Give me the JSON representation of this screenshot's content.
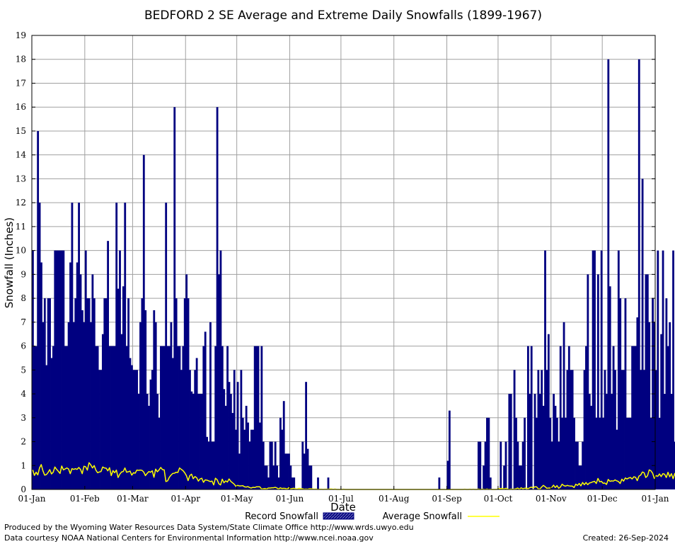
{
  "chart_data": {
    "type": "bar",
    "title": "BEDFORD 2 SE Average and Extreme Daily Snowfalls (1899-1967)",
    "xlabel": "Date",
    "ylabel": "Snowfall (Inches)",
    "ylim": [
      0,
      19
    ],
    "yticks": [
      "0",
      "1",
      "2",
      "3",
      "4",
      "5",
      "6",
      "7",
      "8",
      "9",
      "10",
      "11",
      "12",
      "13",
      "14",
      "15",
      "16",
      "17",
      "18",
      "19"
    ],
    "xticks": [
      "01-Jan",
      "01-Feb",
      "01-Mar",
      "01-Apr",
      "01-May",
      "01-Jun",
      "01-Jul",
      "01-Aug",
      "01-Sep",
      "01-Oct",
      "01-Nov",
      "01-Dec",
      "01-Jan"
    ],
    "xtick_days": [
      0,
      31,
      59,
      90,
      120,
      151,
      181,
      212,
      243,
      273,
      304,
      334,
      365
    ],
    "grid": true,
    "legend_position": "bottom",
    "series": [
      {
        "name": "Record Snowfall",
        "color": "#000080",
        "kind": "bar",
        "values": [
          10,
          6,
          6,
          15,
          12,
          9.5,
          7,
          8,
          5.2,
          8,
          8,
          5.5,
          6,
          10,
          10,
          10,
          10,
          10,
          10,
          6,
          6,
          7,
          9.5,
          12,
          7,
          8,
          9.5,
          12,
          9,
          7.5,
          7,
          10,
          8,
          8,
          7,
          9,
          8,
          6,
          6,
          5,
          5,
          6.5,
          8,
          8,
          10.4,
          6,
          6,
          6,
          6,
          12,
          8.4,
          10,
          6.5,
          8.5,
          12,
          6,
          8,
          5.5,
          5.2,
          5,
          5,
          5,
          4,
          7,
          8,
          14,
          7.5,
          4,
          3.5,
          4.6,
          5,
          7.5,
          7,
          4,
          3,
          6,
          6,
          6,
          12,
          6,
          6,
          7,
          5.5,
          16,
          8,
          6,
          6,
          5,
          6,
          8,
          9,
          8,
          5,
          4.1,
          4,
          5,
          5.5,
          4,
          4,
          4,
          6,
          6.6,
          2.2,
          2,
          7,
          2,
          2,
          6,
          16,
          9,
          10,
          6,
          4.2,
          3.5,
          6,
          4.5,
          4,
          3.2,
          5,
          2.5,
          4.5,
          1.5,
          5,
          3,
          2.5,
          3.5,
          2.8,
          2,
          2.5,
          2.5,
          6,
          6,
          6,
          2.8,
          6,
          2,
          1,
          1,
          0.5,
          2,
          2,
          1,
          2,
          1,
          0.5,
          3,
          2.5,
          3.7,
          1.5,
          1.5,
          1.5,
          1,
          0.5,
          0.5,
          0,
          0,
          0,
          0,
          2,
          1.5,
          4.5,
          1.7,
          1,
          1,
          0,
          0,
          0,
          0.5,
          0,
          0,
          0,
          0,
          0,
          0.5,
          0,
          0,
          0,
          0,
          0,
          0,
          0,
          0,
          0,
          0,
          0,
          0,
          0,
          0,
          0,
          0,
          0,
          0,
          0,
          0,
          0,
          0,
          0,
          0,
          0,
          0,
          0,
          0,
          0,
          0,
          0,
          0,
          0,
          0,
          0,
          0,
          0,
          0,
          0,
          0,
          0,
          0,
          0,
          0,
          0,
          0,
          0,
          0,
          0,
          0,
          0,
          0,
          0,
          0,
          0,
          0,
          0,
          0,
          0,
          0,
          0,
          0,
          0,
          0,
          0.5,
          0,
          0,
          0,
          0,
          1.2,
          3.3,
          0,
          0,
          0,
          0,
          0,
          0,
          0,
          0,
          0,
          0,
          0,
          0,
          0,
          0,
          0,
          0,
          2,
          2,
          0,
          1,
          2,
          3,
          3,
          0.5,
          0,
          0,
          0,
          0,
          0,
          2,
          0,
          1,
          2,
          0,
          4,
          4,
          0,
          5,
          3,
          2,
          1,
          1,
          2,
          3,
          0,
          6,
          4,
          6,
          0,
          4,
          3,
          5,
          4,
          5,
          3.5,
          10,
          5,
          6.5,
          3,
          2,
          4,
          3.5,
          3,
          2,
          6,
          3,
          7,
          3,
          5,
          6,
          5,
          5,
          3,
          2,
          2,
          1,
          1,
          2,
          5,
          6,
          9,
          4,
          3.5,
          10,
          10,
          3,
          9,
          3,
          10,
          3,
          5,
          4,
          18,
          8.5,
          4,
          6,
          5,
          2.5,
          10,
          8,
          5,
          5,
          8,
          3,
          3,
          3,
          6,
          6,
          6,
          7.2,
          18,
          5,
          13,
          5,
          9,
          9,
          7,
          3,
          8,
          7,
          5,
          10,
          3,
          6.5,
          10,
          4,
          8,
          6,
          7,
          4,
          10,
          2,
          4,
          5,
          12,
          7,
          3,
          3,
          10,
          14,
          8,
          10,
          12,
          7,
          4,
          5,
          10,
          4
        ]
      },
      {
        "name": "Average Snowfall",
        "color": "#ffff00",
        "kind": "line",
        "values": [
          0.82,
          0.59,
          0.72,
          0.61,
          0.9,
          1.04,
          0.78,
          0.6,
          0.62,
          0.71,
          0.83,
          0.65,
          0.72,
          0.94,
          0.84,
          0.76,
          0.67,
          0.98,
          0.82,
          0.86,
          0.9,
          0.86,
          0.66,
          0.87,
          0.84,
          0.87,
          0.84,
          0.92,
          0.84,
          0.66,
          0.97,
          0.95,
          0.81,
          1.12,
          1.03,
          0.9,
          1.0,
          0.81,
          0.7,
          0.73,
          0.75,
          0.94,
          0.9,
          0.89,
          0.78,
          0.91,
          0.58,
          0.79,
          0.7,
          0.81,
          0.5,
          0.64,
          0.73,
          0.75,
          0.9,
          0.72,
          0.74,
          0.77,
          0.6,
          0.7,
          0.68,
          0.81,
          0.8,
          0.81,
          0.8,
          0.73,
          0.58,
          0.67,
          0.75,
          0.72,
          0.78,
          0.51,
          0.85,
          0.74,
          0.82,
          0.92,
          0.83,
          0.82,
          0.33,
          0.36,
          0.51,
          0.6,
          0.67,
          0.68,
          0.72,
          0.71,
          0.9,
          0.84,
          0.79,
          0.7,
          0.58,
          0.37,
          0.58,
          0.64,
          0.45,
          0.54,
          0.49,
          0.35,
          0.44,
          0.47,
          0.3,
          0.4,
          0.39,
          0.36,
          0.33,
          0.35,
          0.19,
          0.47,
          0.41,
          0.24,
          0.19,
          0.43,
          0.28,
          0.36,
          0.31,
          0.44,
          0.34,
          0.28,
          0.22,
          0.13,
          0.17,
          0.15,
          0.15,
          0.16,
          0.11,
          0.1,
          0.12,
          0.08,
          0.06,
          0.09,
          0.08,
          0.11,
          0.11,
          0.11,
          0.02,
          0.03,
          0.04,
          0.02,
          0.06,
          0.06,
          0.07,
          0.07,
          0.09,
          0.06,
          0.02,
          0.07,
          0.04,
          0.05,
          0.04,
          0.02,
          0.07,
          0.02,
          0.04,
          0.05,
          0.02,
          0.02,
          0.05,
          0.03,
          0.03,
          0.01,
          0.02,
          0.01,
          0.03,
          0.03,
          0.02,
          0.01,
          0.02,
          0.0,
          0.01,
          0.01,
          0.0,
          0.01,
          0.01,
          0.01,
          0.02,
          0.02,
          0.0,
          0.02,
          0.0,
          0.0,
          0.0,
          0.0,
          0.01,
          0.0,
          0.0,
          0.0,
          0.0,
          0.0,
          0.0,
          0.0,
          0.0,
          0.0,
          0.0,
          0.0,
          0.0,
          0.0,
          0.0,
          0.0,
          0.0,
          0.0,
          0.0,
          0.0,
          0.0,
          0.0,
          0.0,
          0.0,
          0.0,
          0.0,
          0.0,
          0.0,
          0.0,
          0.0,
          0.0,
          0.0,
          0.0,
          0.0,
          0.0,
          0.0,
          0.0,
          0.0,
          0.0,
          0.0,
          0.0,
          0.0,
          0.0,
          0.0,
          0.0,
          0.0,
          0.0,
          0.0,
          0.0,
          0.0,
          0.0,
          0.0,
          0.0,
          0.0,
          0.0,
          0.0,
          0.0,
          0.0,
          0.0,
          0.0,
          0.0,
          0.0,
          0.0,
          0.0,
          0.0,
          0.0,
          0.0,
          0.0,
          0.0,
          0.0,
          0.0,
          0.01,
          0.0,
          0.0,
          0.01,
          0.0,
          0.01,
          0.0,
          0.0,
          0.02,
          0.0,
          0.01,
          0.01,
          0.0,
          0.02,
          0.0,
          0.01,
          0.0,
          0.0,
          0.0,
          0.01,
          0.03,
          0.04,
          0.04,
          0.02,
          0.05,
          0.02,
          0.0,
          0.02,
          0.0,
          0.02,
          0.03,
          0.06,
          0.01,
          0.07,
          0.03,
          0.05,
          0.06,
          0.03,
          0.07,
          0.1,
          0.07,
          0.11,
          0.11,
          0.03,
          0.02,
          0.1,
          0.17,
          0.12,
          0.05,
          0.06,
          0.06,
          0.09,
          0.18,
          0.08,
          0.16,
          0.05,
          0.1,
          0.22,
          0.16,
          0.14,
          0.17,
          0.15,
          0.14,
          0.14,
          0.08,
          0.22,
          0.17,
          0.25,
          0.15,
          0.29,
          0.2,
          0.29,
          0.2,
          0.27,
          0.29,
          0.32,
          0.34,
          0.25,
          0.46,
          0.32,
          0.34,
          0.26,
          0.27,
          0.21,
          0.42,
          0.34,
          0.36,
          0.35,
          0.4,
          0.36,
          0.33,
          0.25,
          0.43,
          0.35,
          0.48,
          0.44,
          0.48,
          0.5,
          0.44,
          0.53,
          0.51,
          0.37,
          0.56,
          0.6,
          0.73,
          0.7,
          0.5,
          0.57,
          0.82,
          0.78,
          0.68,
          0.46,
          0.58,
          0.55,
          0.65,
          0.54,
          0.66,
          0.64,
          0.5,
          0.72,
          0.53,
          0.66,
          0.45,
          0.67,
          0.45,
          0.44,
          0.58,
          0.47,
          0.55,
          0.58,
          0.48,
          0.52,
          0.57,
          0.69,
          0.93,
          0.69,
          0.61,
          0.63,
          0.75,
          0.8,
          0.66,
          0.61,
          0.73,
          0.51,
          0.68,
          0.63,
          0.97,
          0.72,
          0.65,
          0.69,
          0.78,
          0.58,
          0.73,
          0.84,
          0.69,
          0.66,
          0.86,
          0.7,
          0.56,
          0.71,
          0.83,
          0.7,
          0.61,
          0.86,
          1.05,
          0.91,
          0.84,
          0.93,
          0.95,
          0.98,
          0.91,
          1.02,
          0.85,
          0.66,
          1.07
        ]
      }
    ]
  },
  "footer": {
    "left_line1": "Produced by the Wyoming Water Resources Data System/State Climate Office http://www.wrds.uwyo.edu",
    "left_line2": "Data courtesy NOAA National Centers for Environmental Information http://www.ncei.noaa.gov",
    "right": "Created:  26-Sep-2024"
  }
}
